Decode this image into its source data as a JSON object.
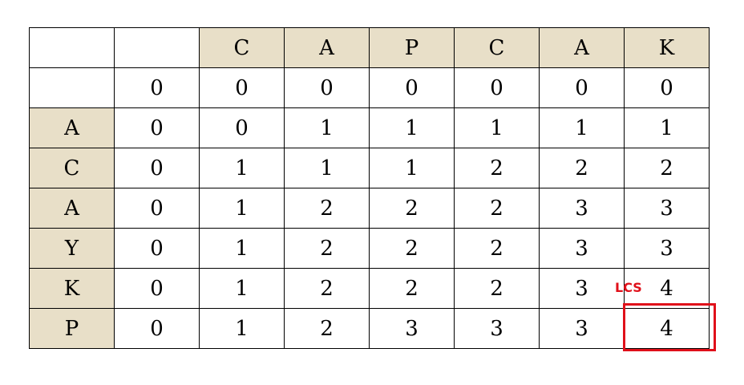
{
  "table": {
    "rows": [
      {
        "label": "",
        "cells": [
          "",
          "C",
          "A",
          "P",
          "C",
          "A",
          "K"
        ]
      },
      {
        "label": "",
        "cells": [
          "0",
          "0",
          "0",
          "0",
          "0",
          "0",
          "0"
        ]
      },
      {
        "label": "A",
        "cells": [
          "0",
          "0",
          "1",
          "1",
          "1",
          "1",
          "1"
        ]
      },
      {
        "label": "C",
        "cells": [
          "0",
          "1",
          "1",
          "1",
          "2",
          "2",
          "2"
        ]
      },
      {
        "label": "A",
        "cells": [
          "0",
          "1",
          "2",
          "2",
          "2",
          "3",
          "3"
        ]
      },
      {
        "label": "Y",
        "cells": [
          "0",
          "1",
          "2",
          "2",
          "2",
          "3",
          "3"
        ]
      },
      {
        "label": "K",
        "cells": [
          "0",
          "1",
          "2",
          "2",
          "2",
          "3",
          "4"
        ]
      },
      {
        "label": "P",
        "cells": [
          "0",
          "1",
          "2",
          "3",
          "3",
          "3",
          "4"
        ]
      }
    ]
  },
  "annotation": {
    "label": "LCS",
    "color": "#e0101a"
  },
  "colors": {
    "header_bg": "#e8dfc8",
    "border": "#000000",
    "highlight": "#e0101a"
  }
}
